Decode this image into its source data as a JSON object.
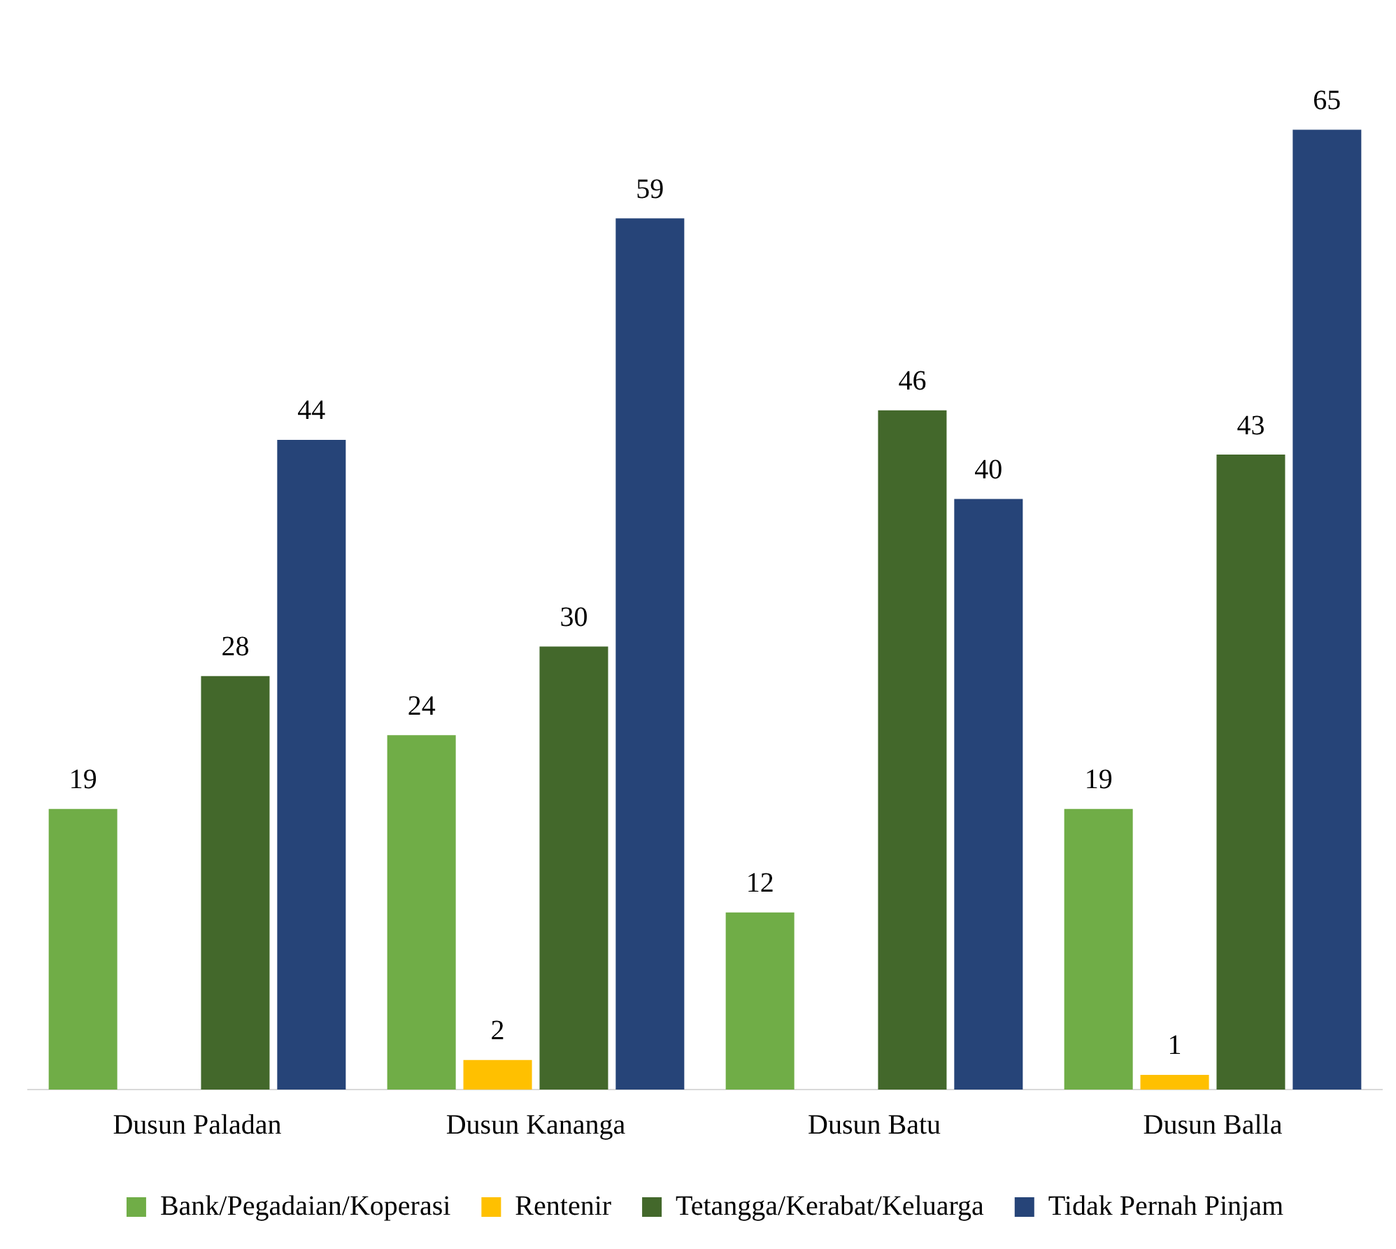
{
  "chart_data": {
    "type": "bar",
    "categories": [
      "Dusun Paladan",
      "Dusun Kananga",
      "Dusun Batu",
      "Dusun Balla"
    ],
    "series": [
      {
        "name": "Bank/Pegadaian/Koperasi",
        "color": "#70ad47",
        "values": [
          19,
          24,
          12,
          19
        ]
      },
      {
        "name": "Rentenir",
        "color": "#ffc000",
        "values": [
          null,
          2,
          null,
          1
        ]
      },
      {
        "name": "Tetangga/Kerabat/Keluarga",
        "color": "#43682b",
        "values": [
          28,
          30,
          46,
          43
        ]
      },
      {
        "name": "Tidak Pernah Pinjam",
        "color": "#264478",
        "values": [
          44,
          59,
          40,
          65
        ]
      }
    ],
    "data_labels": true,
    "legend": "bottom",
    "grid": false,
    "tick_labels": "x"
  }
}
